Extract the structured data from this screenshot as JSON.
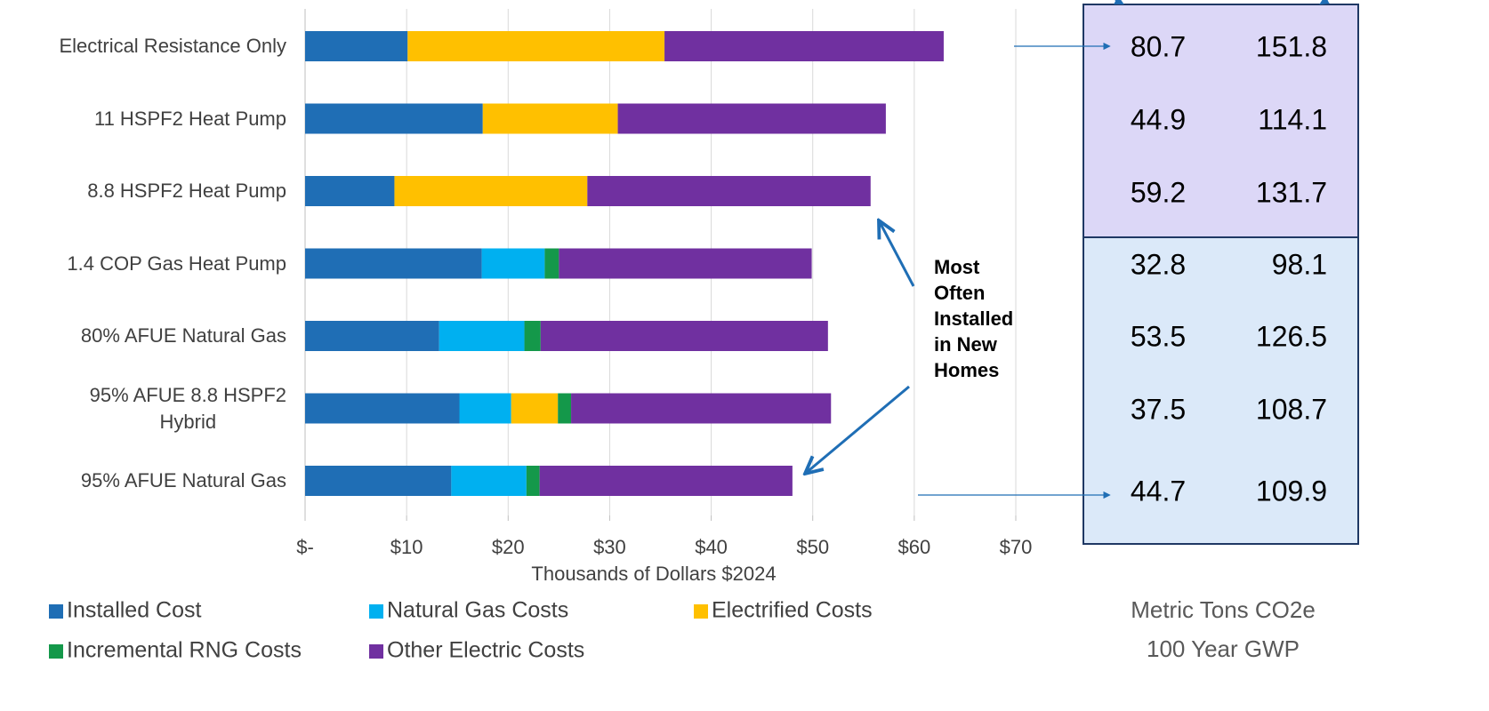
{
  "chart_data": {
    "type": "stacked_bar_horizontal",
    "categories": [
      "Electrical Resistance Only",
      "11 HSPF2 Heat Pump",
      "8.8 HSPF2 Heat Pump",
      "1.4 COP Gas Heat Pump",
      "80% AFUE Natural Gas",
      "95% AFUE 8.8 HSPF2\nHybrid",
      "95% AFUE Natural Gas"
    ],
    "series": [
      {
        "name": "Installed Cost",
        "color": "#1f6eb5",
        "values": [
          10.1,
          17.5,
          8.8,
          17.4,
          13.2,
          15.2,
          14.4
        ]
      },
      {
        "name": "Natural Gas Costs",
        "color": "#00b0f0",
        "values": [
          null,
          null,
          null,
          6.2,
          8.4,
          5.1,
          7.4
        ]
      },
      {
        "name": "Electrified Costs",
        "color": "#ffc000",
        "values": [
          25.3,
          13.3,
          19.0,
          null,
          null,
          4.6,
          null
        ]
      },
      {
        "name": "Incremental RNG Costs",
        "color": "#14984a",
        "values": [
          null,
          null,
          null,
          1.4,
          1.6,
          1.3,
          1.3
        ]
      },
      {
        "name": "Other Electric Costs",
        "color": "#7030a0",
        "values": [
          27.5,
          26.4,
          27.9,
          24.9,
          28.3,
          25.6,
          24.9
        ]
      }
    ],
    "xlim": [
      0,
      70
    ],
    "xticks": [
      {
        "value": 0,
        "label": "$-"
      },
      {
        "value": 10,
        "label": "$10"
      },
      {
        "value": 20,
        "label": "$20"
      },
      {
        "value": 30,
        "label": "$30"
      },
      {
        "value": 40,
        "label": "$40"
      },
      {
        "value": 50,
        "label": "$50"
      },
      {
        "value": 60,
        "label": "$60"
      },
      {
        "value": 70,
        "label": "$70"
      }
    ],
    "x_label": "Thousands of Dollars $2024",
    "grid": true,
    "annotation": "Most Often Installed in New Homes"
  },
  "emissions_table": {
    "rows": [
      [
        "80.7",
        "151.8"
      ],
      [
        "44.9",
        "114.1"
      ],
      [
        "59.2",
        "131.7"
      ],
      [
        "32.8",
        "98.1"
      ],
      [
        "53.5",
        "126.5"
      ],
      [
        "37.5",
        "108.7"
      ],
      [
        "44.7",
        "109.9"
      ]
    ],
    "caption": [
      "Metric Tons CO2e",
      "100 Year GWP"
    ]
  }
}
